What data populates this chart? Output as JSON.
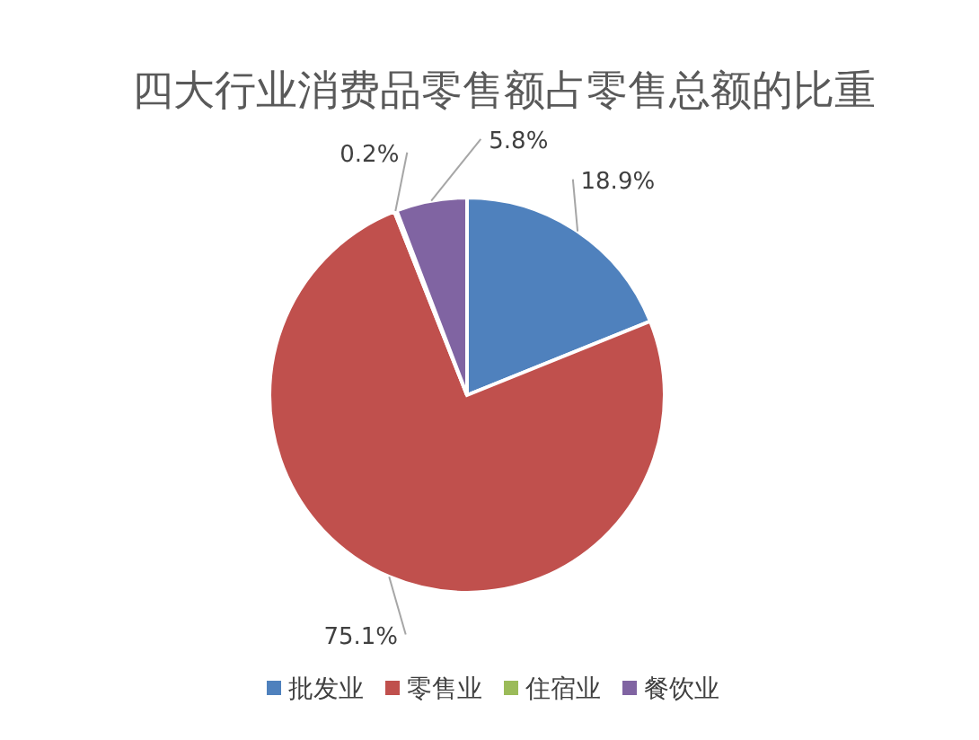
{
  "chart_data": {
    "type": "pie",
    "title": "四大行业消费品零售额占零售总额的比重",
    "categories": [
      "批发业",
      "零售业",
      "住宿业",
      "餐饮业"
    ],
    "values": [
      18.9,
      75.1,
      0.2,
      5.8
    ],
    "colors": [
      "#4f81bd",
      "#c0504d",
      "#9bbb59",
      "#8064a2"
    ],
    "value_labels": [
      "18.9%",
      "75.1%",
      "0.2%",
      "5.8%"
    ],
    "legend": "bottom"
  }
}
